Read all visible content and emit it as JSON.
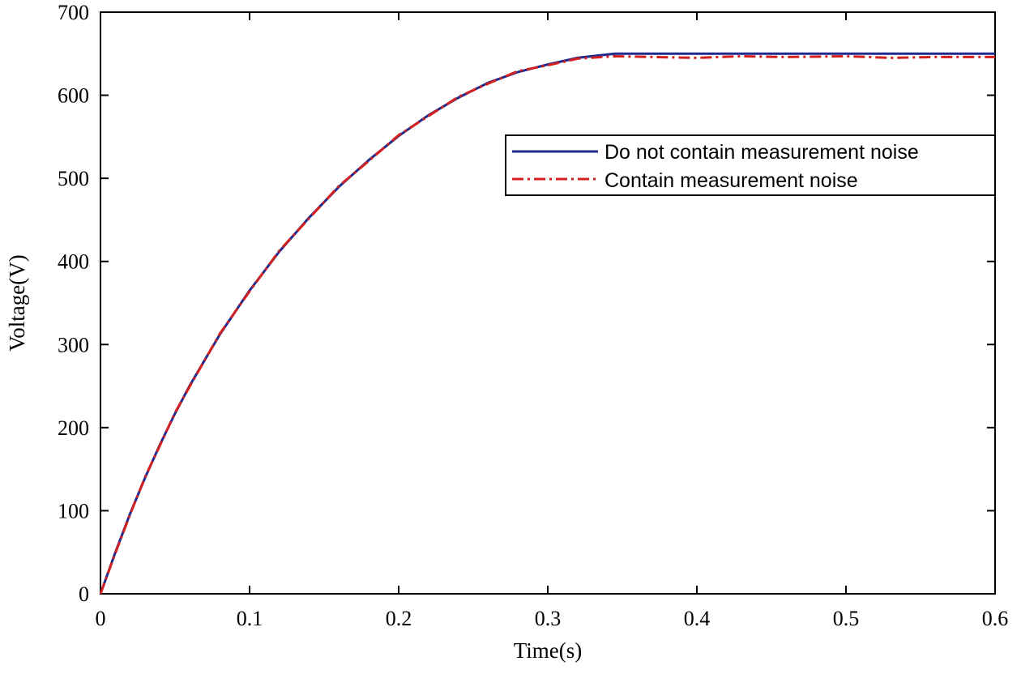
{
  "chart_data": {
    "type": "line",
    "title": "",
    "xlabel": "Time(s)",
    "ylabel": "Voltage(V)",
    "xlim": [
      0,
      0.6
    ],
    "ylim": [
      0,
      700
    ],
    "xticks": [
      0,
      0.1,
      0.2,
      0.3,
      0.4,
      0.5,
      0.6
    ],
    "xtick_labels": [
      "0",
      "0.1",
      "0.2",
      "0.3",
      "0.4",
      "0.5",
      "0.6"
    ],
    "yticks": [
      0,
      100,
      200,
      300,
      400,
      500,
      600,
      700
    ],
    "ytick_labels": [
      "0",
      "100",
      "200",
      "300",
      "400",
      "500",
      "600",
      "700"
    ],
    "grid": false,
    "legend_position": "upper-right",
    "series": [
      {
        "name": "Do not contain measurement noise",
        "color": "#1f2a8c",
        "style": "solid",
        "x": [
          0,
          0.01,
          0.02,
          0.03,
          0.04,
          0.05,
          0.06,
          0.08,
          0.1,
          0.12,
          0.14,
          0.16,
          0.18,
          0.2,
          0.22,
          0.24,
          0.26,
          0.28,
          0.3,
          0.32,
          0.345,
          0.4,
          0.45,
          0.5,
          0.55,
          0.6
        ],
        "y": [
          0,
          50,
          97,
          140,
          180,
          217,
          251,
          312,
          365,
          412,
          453,
          490,
          522,
          551,
          576,
          597,
          615,
          628,
          637,
          645,
          650,
          650,
          650,
          650,
          650,
          650
        ]
      },
      {
        "name": "Contain measurement noise",
        "color": "#d42020",
        "style": "dashdot",
        "x": [
          0,
          0.01,
          0.02,
          0.03,
          0.04,
          0.05,
          0.06,
          0.08,
          0.1,
          0.12,
          0.14,
          0.16,
          0.18,
          0.2,
          0.22,
          0.24,
          0.26,
          0.28,
          0.3,
          0.32,
          0.345,
          0.37,
          0.4,
          0.43,
          0.46,
          0.5,
          0.53,
          0.56,
          0.6
        ],
        "y": [
          0,
          49,
          96,
          141,
          179,
          218,
          250,
          313,
          364,
          413,
          452,
          491,
          521,
          552,
          575,
          598,
          614,
          629,
          636,
          644,
          647,
          646,
          645,
          647,
          646,
          647,
          645,
          646,
          646
        ]
      }
    ]
  }
}
